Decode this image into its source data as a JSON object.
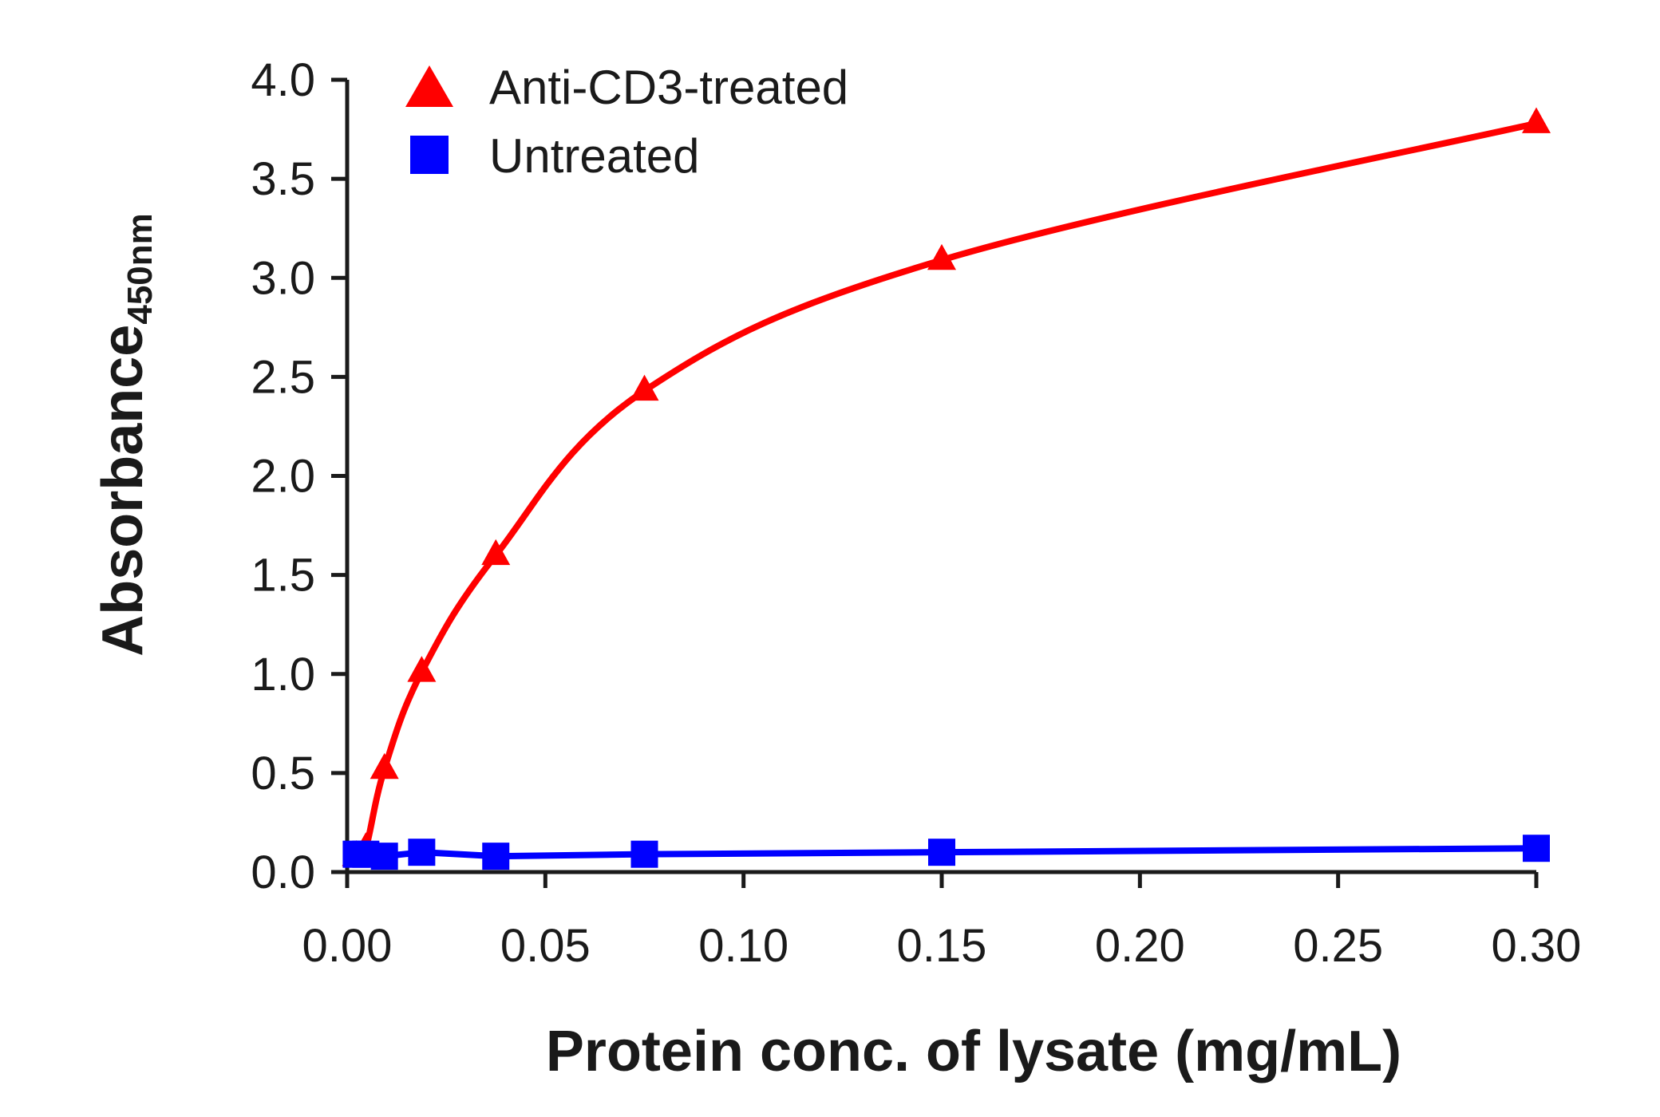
{
  "chart_data": {
    "type": "line",
    "title": "",
    "xlabel": "Protein conc. of lysate (mg/mL)",
    "ylabel": "Absorbance",
    "ylabel_subscript": "450nm",
    "xlim": [
      0,
      0.3
    ],
    "ylim": [
      0,
      4.0
    ],
    "x_ticks": [
      0,
      0.05,
      0.1,
      0.15,
      0.2,
      0.25,
      0.3
    ],
    "x_tick_labels": [
      "0.00",
      "0.05",
      "0.10",
      "0.15",
      "0.20",
      "0.25",
      "0.30"
    ],
    "y_ticks": [
      0,
      0.5,
      1.0,
      1.5,
      2.0,
      2.5,
      3.0,
      3.5,
      4.0
    ],
    "y_tick_labels": [
      "0.0",
      "0.5",
      "1.0",
      "1.5",
      "2.0",
      "2.5",
      "3.0",
      "3.5",
      "4.0"
    ],
    "grid": false,
    "legend_position": "top-left",
    "series": [
      {
        "name": "Anti-CD3-treated",
        "marker": "triangle",
        "color": "#ff0000",
        "x": [
          0.0023,
          0.0047,
          0.0094,
          0.0188,
          0.0375,
          0.075,
          0.15,
          0.3
        ],
        "y": [
          0.08,
          0.12,
          0.52,
          1.01,
          1.6,
          2.43,
          3.09,
          3.78
        ]
      },
      {
        "name": "Untreated",
        "marker": "square",
        "color": "#0000ff",
        "x": [
          0.0023,
          0.0047,
          0.0094,
          0.0188,
          0.0375,
          0.075,
          0.15,
          0.3
        ],
        "y": [
          0.09,
          0.09,
          0.08,
          0.1,
          0.08,
          0.09,
          0.1,
          0.12
        ]
      }
    ]
  }
}
